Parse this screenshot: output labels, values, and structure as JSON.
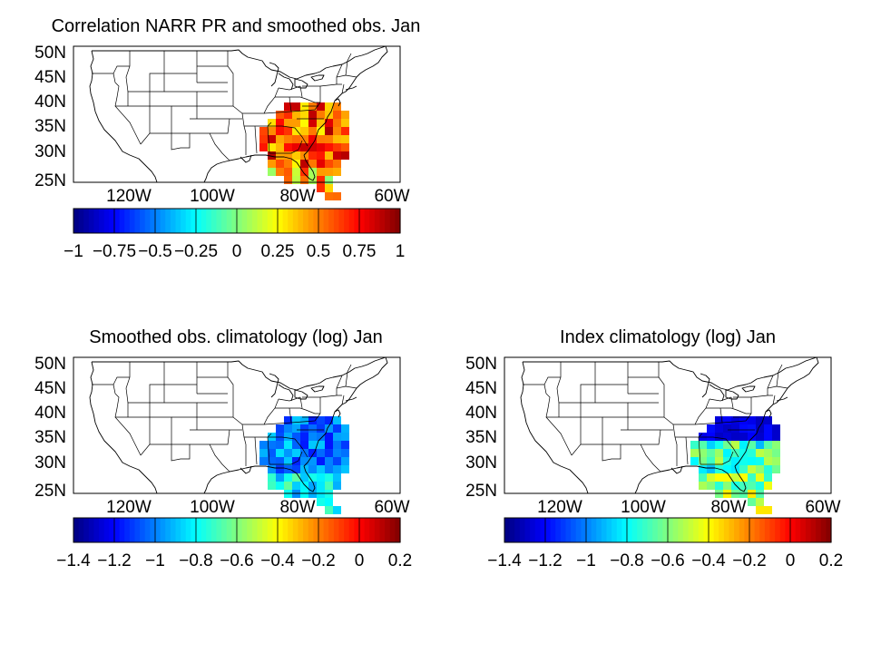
{
  "figure": {
    "panels": [
      {
        "id": "correlation",
        "title": "Correlation NARR PR and smoothed obs. Jan",
        "lat_labels": [
          "50N",
          "45N",
          "40N",
          "35N",
          "30N",
          "25N"
        ],
        "lon_labels": [
          "120W",
          "100W",
          "80W",
          "60W"
        ],
        "colorbar_ticks": [
          "−1",
          "−0.75",
          "−0.5",
          "−0.25",
          "0",
          "0.25",
          "0.5",
          "0.75",
          "1"
        ],
        "colorbar_range": [
          -1,
          1
        ],
        "colormap": "jet"
      },
      {
        "id": "smoothed-obs-climatology",
        "title": "Smoothed obs. climatology (log) Jan",
        "lat_labels": [
          "50N",
          "45N",
          "40N",
          "35N",
          "30N",
          "25N"
        ],
        "lon_labels": [
          "120W",
          "100W",
          "80W",
          "60W"
        ],
        "colorbar_ticks": [
          "−1.4",
          "−1.2",
          "−1",
          "−0.8",
          "−0.6",
          "−0.4",
          "−0.2",
          "0",
          "0.2"
        ],
        "colorbar_range": [
          -1.4,
          0.2
        ],
        "colormap": "jet"
      },
      {
        "id": "index-climatology",
        "title": "Index climatology (log) Jan",
        "lat_labels": [
          "50N",
          "45N",
          "40N",
          "35N",
          "30N",
          "25N"
        ],
        "lon_labels": [
          "120W",
          "100W",
          "80W",
          "60W"
        ],
        "colorbar_ticks": [
          "−1.4",
          "−1.2",
          "−1",
          "−0.8",
          "−0.6",
          "−0.4",
          "−0.2",
          "0",
          "0.2"
        ],
        "colorbar_range": [
          -1.4,
          0.2
        ],
        "colormap": "jet"
      }
    ]
  }
}
